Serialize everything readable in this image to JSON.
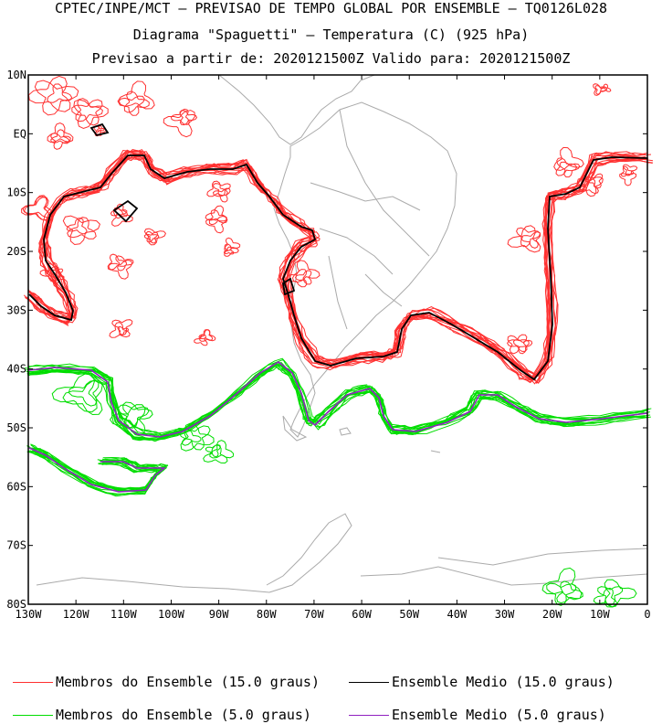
{
  "header": {
    "line1": "CPTEC/INPE/MCT – PREVISAO DE TEMPO GLOBAL POR ENSEMBLE – TQ0126L028",
    "line2": "Diagrama \"Spaguetti\" – Temperatura (C) (925 hPa)",
    "line3": "Previsao a partir de: 2020121500Z  Valido para: 2020121500Z"
  },
  "map": {
    "lat_labels": [
      "10N",
      "EQ",
      "10S",
      "20S",
      "30S",
      "40S",
      "50S",
      "60S",
      "70S",
      "80S"
    ],
    "lon_labels": [
      "130W",
      "120W",
      "110W",
      "100W",
      "90W",
      "80W",
      "70W",
      "60W",
      "50W",
      "40W",
      "30W",
      "20W",
      "10W",
      "0"
    ],
    "lon_range": [
      -130,
      0
    ],
    "lat_range": [
      -80,
      10
    ],
    "colors": {
      "members_15": "#ff3030",
      "mean_15": "#000000",
      "members_5": "#00dd00",
      "mean_5": "#9020c0",
      "coast": "#aaaaaa"
    }
  },
  "legend": {
    "members_15": "Membros do Ensemble (15.0 graus)",
    "mean_15": "Ensemble Medio (15.0 graus)",
    "members_5": "Membros do Ensemble (5.0 graus)",
    "mean_5": "Ensemble Medio (5.0 graus)"
  }
}
